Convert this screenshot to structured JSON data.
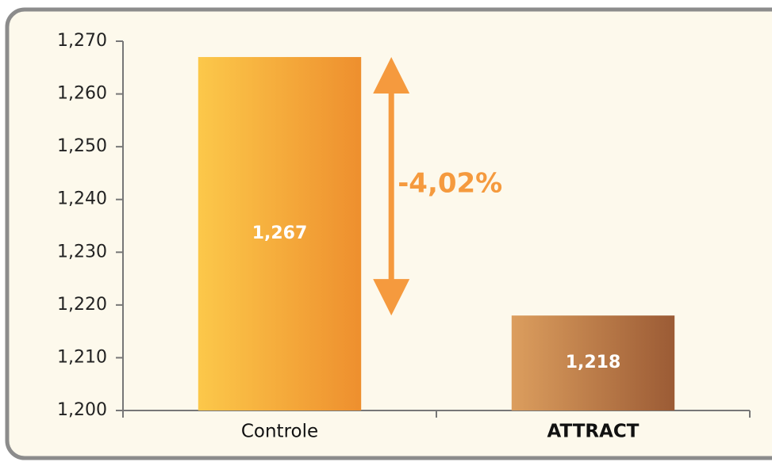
{
  "chart_data": {
    "type": "bar",
    "categories": [
      "Controle",
      "ATTRACT"
    ],
    "values": [
      1267,
      1218
    ],
    "value_labels": [
      "1,267",
      "1,218"
    ],
    "gradients": [
      [
        "#fcc84a",
        "#ee8f2e"
      ],
      [
        "#dc9e5e",
        "#9b5b35"
      ]
    ],
    "ylim": [
      1200,
      1270
    ],
    "yticks": [
      {
        "value": 1200,
        "label": "1,200"
      },
      {
        "value": 1210,
        "label": "1,210"
      },
      {
        "value": 1220,
        "label": "1,220"
      },
      {
        "value": 1230,
        "label": "1,230"
      },
      {
        "value": 1240,
        "label": "1,240"
      },
      {
        "value": 1250,
        "label": "1,250"
      },
      {
        "value": 1260,
        "label": "1,260"
      },
      {
        "value": 1270,
        "label": "1,270"
      }
    ],
    "annotation": "-4,02%",
    "annotation_color": "#f59a3e"
  }
}
